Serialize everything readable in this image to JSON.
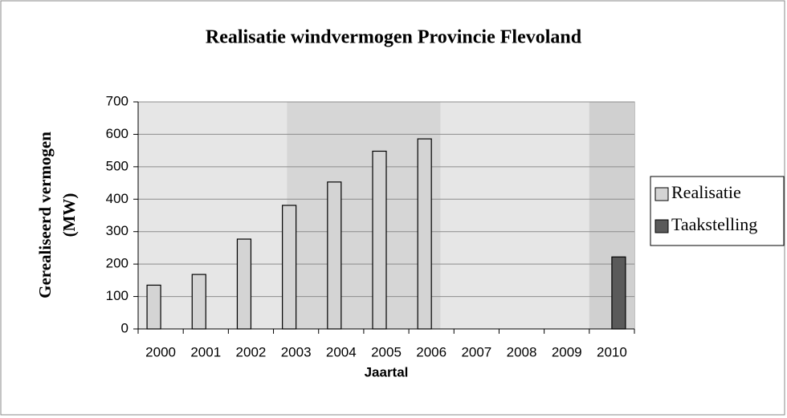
{
  "chart_data": {
    "type": "bar",
    "title": "Realisatie windvermogen Provincie Flevoland",
    "xlabel": "Jaartal",
    "ylabel": [
      "Gerealiseerd vermogen",
      "(MW)"
    ],
    "categories": [
      "2000",
      "2001",
      "2002",
      "2003",
      "2004",
      "2005",
      "2006",
      "2007",
      "2008",
      "2009",
      "2010"
    ],
    "series": [
      {
        "name": "Realisatie",
        "color": "#d4d4d4",
        "values": [
          135,
          168,
          277,
          381,
          453,
          548,
          586,
          null,
          null,
          null,
          null
        ]
      },
      {
        "name": "Taakstelling",
        "color": "#5a5a5a",
        "values": [
          null,
          null,
          null,
          null,
          null,
          null,
          null,
          null,
          null,
          null,
          222
        ]
      }
    ],
    "ylim": [
      0,
      700
    ],
    "yticks": [
      0,
      100,
      200,
      300,
      400,
      500,
      600,
      700
    ],
    "grid": true,
    "legend": "right"
  }
}
